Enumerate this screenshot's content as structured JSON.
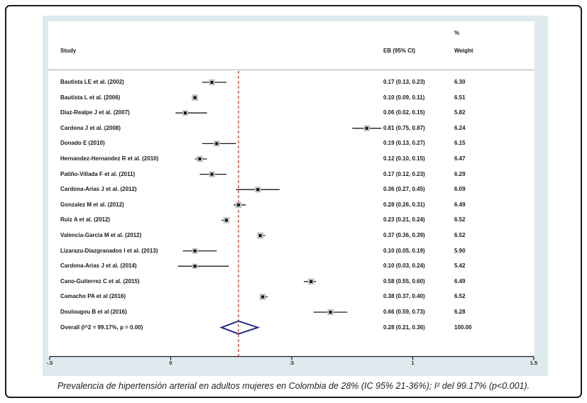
{
  "figure": {
    "columns": {
      "study": "Study",
      "effect": "EB (95% CI)",
      "weight_pct": "%",
      "weight": "Weight"
    },
    "caption": "Prevalencia de hipertensión arterial en adultos mujeres en Colombia de 28% (IC 95% 21-36%); I² del 99.17% (p<0.001)."
  },
  "chart_data": {
    "type": "forest",
    "xlim": [
      -0.5,
      1.5
    ],
    "x_ticks": [
      -0.5,
      0,
      0.5,
      1,
      1.5
    ],
    "x_tick_labels": [
      "-.5",
      "0",
      ".5",
      "1",
      "1.5"
    ],
    "reference_line": 0.28,
    "studies": [
      {
        "label": "Bautista LE et al. (2002)",
        "es": 0.17,
        "lo": 0.13,
        "hi": 0.23,
        "ci_text": "0.17 (0.13, 0.23)",
        "weight": 6.3,
        "weight_text": "6.30"
      },
      {
        "label": "Bautista L et al. (2006)",
        "es": 0.1,
        "lo": 0.09,
        "hi": 0.11,
        "ci_text": "0.10 (0.09, 0.11)",
        "weight": 6.51,
        "weight_text": "6.51"
      },
      {
        "label": "Diaz-Realpe J et al. (2007)",
        "es": 0.06,
        "lo": 0.02,
        "hi": 0.15,
        "ci_text": "0.06 (0.02, 0.15)",
        "weight": 5.82,
        "weight_text": "5.82"
      },
      {
        "label": "Cardona J et al. (2008)",
        "es": 0.81,
        "lo": 0.75,
        "hi": 0.87,
        "ci_text": "0.81 (0.75, 0.87)",
        "weight": 6.24,
        "weight_text": "6.24"
      },
      {
        "label": "Donado E (2010)",
        "es": 0.19,
        "lo": 0.13,
        "hi": 0.27,
        "ci_text": "0.19 (0.13, 0.27)",
        "weight": 6.15,
        "weight_text": "6.15"
      },
      {
        "label": "Hernandez-Hernandez R et al. (2010)",
        "es": 0.12,
        "lo": 0.1,
        "hi": 0.15,
        "ci_text": "0.12 (0.10, 0.15)",
        "weight": 6.47,
        "weight_text": "6.47"
      },
      {
        "label": "Patiño-Villada F et al. (2011)",
        "es": 0.17,
        "lo": 0.12,
        "hi": 0.23,
        "ci_text": "0.17 (0.12, 0.23)",
        "weight": 6.29,
        "weight_text": "6.29"
      },
      {
        "label": "Cardona-Arias J et al. (2012)",
        "es": 0.36,
        "lo": 0.27,
        "hi": 0.45,
        "ci_text": "0.36 (0.27, 0.45)",
        "weight": 6.09,
        "weight_text": "6.09"
      },
      {
        "label": "Gonzalez M et al. (2012)",
        "es": 0.28,
        "lo": 0.26,
        "hi": 0.31,
        "ci_text": "0.28 (0.26, 0.31)",
        "weight": 6.49,
        "weight_text": "6.49"
      },
      {
        "label": "Ruiz A et al. (2012)",
        "es": 0.23,
        "lo": 0.21,
        "hi": 0.24,
        "ci_text": "0.23 (0.21, 0.24)",
        "weight": 6.52,
        "weight_text": "6.52"
      },
      {
        "label": "Valencia-Garcia M et al. (2012)",
        "es": 0.37,
        "lo": 0.36,
        "hi": 0.39,
        "ci_text": "0.37 (0.36, 0.39)",
        "weight": 6.52,
        "weight_text": "6.52"
      },
      {
        "label": "Lizarazu-Diazgranados I et al. (2013)",
        "es": 0.1,
        "lo": 0.05,
        "hi": 0.19,
        "ci_text": "0.10 (0.05, 0.19)",
        "weight": 5.9,
        "weight_text": "5.90"
      },
      {
        "label": "Cardona-Arias J et al. (2014)",
        "es": 0.1,
        "lo": 0.03,
        "hi": 0.24,
        "ci_text": "0.10 (0.03, 0.24)",
        "weight": 5.42,
        "weight_text": "5.42"
      },
      {
        "label": "Cano-Gutierrez C et al. (2015)",
        "es": 0.58,
        "lo": 0.55,
        "hi": 0.6,
        "ci_text": "0.58 (0.55, 0.60)",
        "weight": 6.49,
        "weight_text": "6.49"
      },
      {
        "label": "Camacho PA et al (2016)",
        "es": 0.38,
        "lo": 0.37,
        "hi": 0.4,
        "ci_text": "0.38 (0.37, 0.40)",
        "weight": 6.52,
        "weight_text": "6.52"
      },
      {
        "label": "Doulougou B et al (2016)",
        "es": 0.66,
        "lo": 0.59,
        "hi": 0.73,
        "ci_text": "0.66 (0.59, 0.73)",
        "weight": 6.28,
        "weight_text": "6.28"
      }
    ],
    "overall": {
      "label": "Overall  (I^2 = 99.17%, p = 0.00)",
      "es": 0.28,
      "lo": 0.21,
      "hi": 0.36,
      "ci_text": "0.28 (0.21, 0.36)",
      "weight_text": "100.00"
    }
  },
  "colors": {
    "panel_bg": "#dfeaee",
    "reference_line": "#c22823",
    "diamond": "#272c82",
    "ci_line": "#1a1a1a",
    "marker": "#111111",
    "weight_box": "#c4c4c4",
    "axis": "#1c1c1c"
  }
}
